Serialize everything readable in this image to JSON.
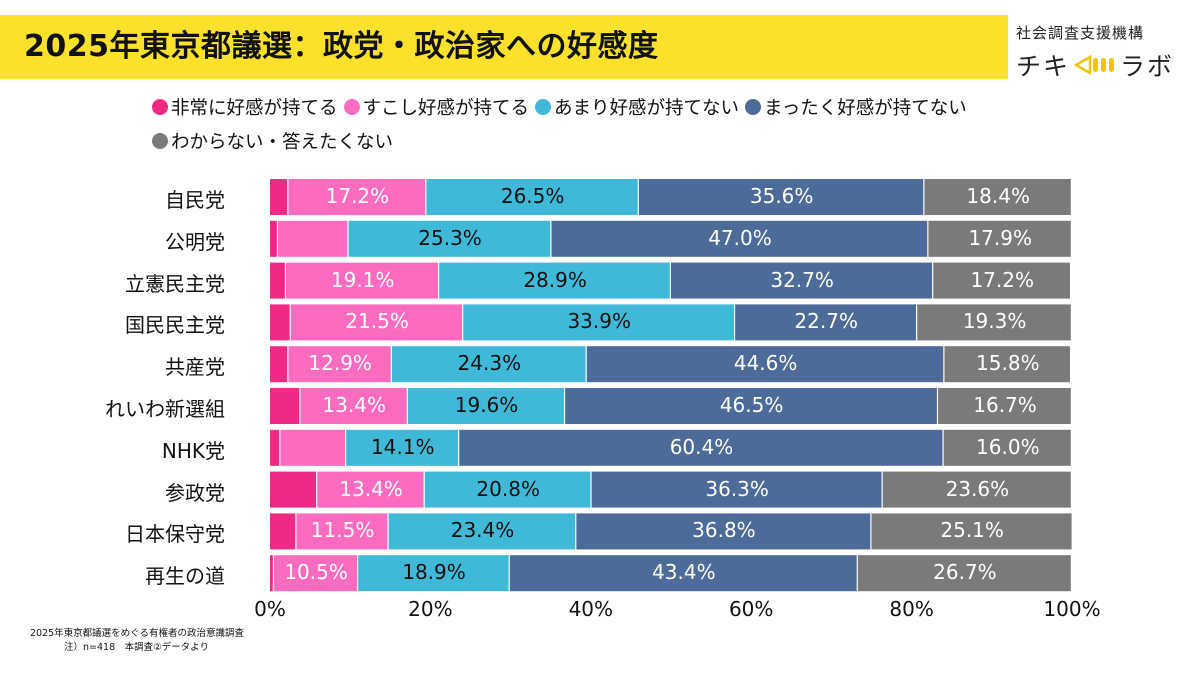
{
  "header": {
    "title": "2025年東京都議選：政党・政治家への好感度",
    "brand_sub": "社会調査支援機構",
    "brand_left": "チキ",
    "brand_right": "ラボ"
  },
  "colors": {
    "very_good": "#ee2a85",
    "somewhat_good": "#fb6cc0",
    "somewhat_not": "#40b8d8",
    "not_at_all": "#4d6b98",
    "dont_know": "#7a7a7a",
    "title_bar": "#fbe12b"
  },
  "chart_data": {
    "type": "bar",
    "orientation": "horizontal",
    "stacked": true,
    "categories": [
      "自民党",
      "公明党",
      "立憲民主党",
      "国民民主党",
      "共産党",
      "れいわ新選組",
      "NHK党",
      "参政党",
      "日本保守党",
      "再生の道"
    ],
    "series": [
      {
        "name": "非常に好感が持てる",
        "values": [
          2.3,
          1.0,
          2.0,
          2.6,
          2.3,
          3.8,
          1.3,
          5.9,
          3.3,
          0.5
        ]
      },
      {
        "name": "すこし好感が持てる",
        "values": [
          17.2,
          8.8,
          19.1,
          21.5,
          12.9,
          13.4,
          8.2,
          13.4,
          11.5,
          10.5
        ]
      },
      {
        "name": "あまり好感が持てない",
        "values": [
          26.5,
          25.3,
          28.9,
          33.9,
          24.3,
          19.6,
          14.1,
          20.8,
          23.4,
          18.9
        ]
      },
      {
        "name": "まったく好感が持てない",
        "values": [
          35.6,
          47.0,
          32.7,
          22.7,
          44.6,
          46.5,
          60.4,
          36.3,
          36.8,
          43.4
        ]
      },
      {
        "name": "わからない・答えたくない",
        "values": [
          18.4,
          17.9,
          17.2,
          19.3,
          15.8,
          16.7,
          16.0,
          23.6,
          25.1,
          26.7
        ]
      }
    ],
    "data_labels": [
      [
        null,
        "17.2%",
        "26.5%",
        "35.6%",
        "18.4%"
      ],
      [
        null,
        null,
        "25.3%",
        "47.0%",
        "17.9%"
      ],
      [
        null,
        "19.1%",
        "28.9%",
        "32.7%",
        "17.2%"
      ],
      [
        null,
        "21.5%",
        "33.9%",
        "22.7%",
        "19.3%"
      ],
      [
        null,
        "12.9%",
        "24.3%",
        "44.6%",
        "15.8%"
      ],
      [
        null,
        "13.4%",
        "19.6%",
        "46.5%",
        "16.7%"
      ],
      [
        null,
        null,
        "14.1%",
        "60.4%",
        "16.0%"
      ],
      [
        null,
        "13.4%",
        "20.8%",
        "36.3%",
        "23.6%"
      ],
      [
        null,
        "11.5%",
        "23.4%",
        "36.8%",
        "25.1%"
      ],
      [
        null,
        "10.5%",
        "18.9%",
        "43.4%",
        "26.7%"
      ]
    ],
    "xlim": [
      0,
      100
    ],
    "x_ticks": [
      "0%",
      "20%",
      "40%",
      "60%",
      "80%",
      "100%"
    ],
    "legend_position": "top",
    "grid": false
  },
  "footnote": {
    "line1": "2025年東京都議選をめぐる有権者の政治意識調査",
    "line2": "注）n=418　本調査②データより"
  }
}
